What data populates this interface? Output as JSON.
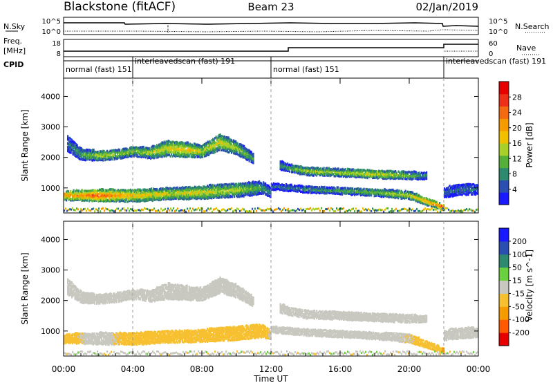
{
  "header": {
    "station": "Blackstone (fitACF)",
    "beam": "Beam 23",
    "date": "02/Jan/2019"
  },
  "left_labels": {
    "nsky": "N.Sky",
    "freq_line1": "Freq.",
    "freq_line2": "[MHz]",
    "cpid": "CPID"
  },
  "right_labels": {
    "nsearch": "N.Search",
    "nave": "Nave"
  },
  "noise_axis": {
    "top": "10^5",
    "bottom": "10^0"
  },
  "freq_axis": {
    "left_top": "18",
    "left_bottom": "8",
    "right_top": "60",
    "right_bottom": "0"
  },
  "cpid_segments": [
    {
      "label": "normal (fast) 151",
      "start_hour": 0
    },
    {
      "label": "interleavedscan (fast) 191",
      "start_hour": 4
    },
    {
      "label": "normal (fast) 151",
      "start_hour": 12
    },
    {
      "label": "interleavedscan (fast) 191",
      "start_hour": 22
    }
  ],
  "power_colorbar": {
    "label": "Power [dB]",
    "ticks": [
      "4",
      "8",
      "12",
      "16",
      "20",
      "24",
      "28"
    ],
    "colors": [
      "#1a1aff",
      "#2a4fb0",
      "#2e8a6e",
      "#55b03a",
      "#a8cf2a",
      "#f0c000",
      "#f59a00",
      "#f46a10",
      "#ee3018",
      "#e60000"
    ]
  },
  "velocity_colorbar": {
    "label": "Velocity [m s^-1]",
    "ticks": [
      "-200",
      "-100",
      "-50",
      "-15",
      "15",
      "50",
      "100",
      "200"
    ],
    "colors": [
      "#e60000",
      "#ff5a00",
      "#f59a00",
      "#f7c030",
      "#c8c8c0",
      "#6ad040",
      "#2e8a6e",
      "#2a4fb0",
      "#1a1aff"
    ]
  },
  "chart_data": {
    "type": "heatmap",
    "xlabel": "Time UT",
    "ylabel": "Slant Range [km]",
    "x_ticks": [
      "00:00",
      "04:00",
      "08:00",
      "12:00",
      "16:00",
      "20:00",
      "00:00"
    ],
    "xlim_hours": [
      0,
      24
    ],
    "ylim_km": [
      180,
      4600
    ],
    "y_ticks": [
      1000,
      2000,
      3000,
      4000
    ],
    "mode_change_hours": [
      4,
      12,
      22
    ],
    "backscatter_bands": [
      {
        "description_key": "far band",
        "time_hours": [
          0.2,
          1.0,
          2.0,
          3.0,
          4.0,
          5.0,
          6.0,
          7.0,
          8.0,
          9.0,
          10.0,
          11.0
        ],
        "center_km": [
          2500,
          2150,
          2100,
          2150,
          2250,
          2200,
          2350,
          2300,
          2250,
          2550,
          2350,
          2000
        ],
        "half_width_km": [
          250,
          180,
          150,
          150,
          150,
          180,
          250,
          230,
          200,
          250,
          200,
          150
        ],
        "power_db": [
          8,
          12,
          16,
          16,
          14,
          16,
          18,
          20,
          16,
          18,
          16,
          12
        ],
        "velocity_ms": [
          5,
          0,
          0,
          0,
          0,
          0,
          0,
          0,
          0,
          0,
          0,
          0
        ]
      },
      {
        "description_key": "near band",
        "time_hours": [
          0.0,
          2.0,
          4.0,
          6.0,
          8.0,
          10.0,
          11.5,
          12.0
        ],
        "center_km": [
          800,
          800,
          800,
          850,
          900,
          980,
          1050,
          900
        ],
        "half_width_km": [
          150,
          180,
          200,
          180,
          200,
          220,
          200,
          150
        ],
        "power_db": [
          22,
          26,
          20,
          18,
          18,
          16,
          12,
          8
        ],
        "velocity_ms": [
          -30,
          0,
          -30,
          -30,
          -40,
          -40,
          -30,
          -10
        ]
      },
      {
        "description_key": "afternoon band",
        "time_hours": [
          12.5,
          13.0,
          14.0,
          16.0,
          18.0,
          20.0,
          21.0
        ],
        "center_km": [
          1800,
          1700,
          1600,
          1550,
          1500,
          1450,
          1450
        ],
        "half_width_km": [
          150,
          120,
          130,
          120,
          130,
          120,
          100
        ],
        "power_db": [
          10,
          12,
          16,
          16,
          18,
          14,
          10
        ],
        "velocity_ms": [
          0,
          0,
          0,
          0,
          0,
          0,
          0
        ]
      },
      {
        "description_key": "descending band",
        "time_hours": [
          12.0,
          14.0,
          16.0,
          18.0,
          20.0,
          21.5,
          22.0
        ],
        "center_km": [
          1100,
          1000,
          950,
          900,
          800,
          500,
          400
        ],
        "half_width_km": [
          100,
          100,
          100,
          110,
          120,
          100,
          80
        ],
        "power_db": [
          8,
          10,
          12,
          14,
          18,
          24,
          28
        ],
        "velocity_ms": [
          0,
          0,
          0,
          0,
          -15,
          -30,
          -60
        ]
      },
      {
        "description_key": "late band",
        "time_hours": [
          22.0,
          23.0,
          24.0
        ],
        "center_km": [
          900,
          1000,
          1000
        ],
        "half_width_km": [
          150,
          180,
          150
        ],
        "power_db": [
          8,
          8,
          8
        ],
        "velocity_ms": [
          0,
          0,
          0
        ]
      }
    ]
  }
}
